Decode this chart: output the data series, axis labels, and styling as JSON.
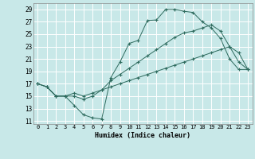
{
  "xlabel": "Humidex (Indice chaleur)",
  "background_color": "#c8e8e8",
  "grid_color": "#ffffff",
  "line_color": "#2e6b5e",
  "xlim": [
    -0.5,
    23.5
  ],
  "ylim": [
    10.5,
    30.0
  ],
  "yticks": [
    11,
    13,
    15,
    17,
    19,
    21,
    23,
    25,
    27,
    29
  ],
  "xticks": [
    0,
    1,
    2,
    3,
    4,
    5,
    6,
    7,
    8,
    9,
    10,
    11,
    12,
    13,
    14,
    15,
    16,
    17,
    18,
    19,
    20,
    21,
    22,
    23
  ],
  "line1_x": [
    0,
    1,
    2,
    3,
    4,
    5,
    6,
    7,
    8,
    9,
    10,
    11,
    12,
    13,
    14,
    15,
    16,
    17,
    18,
    19,
    20,
    21,
    22,
    23
  ],
  "line1_y": [
    17.0,
    16.5,
    15.0,
    15.0,
    13.5,
    12.0,
    11.5,
    11.3,
    18.0,
    20.5,
    23.5,
    24.0,
    27.2,
    27.3,
    29.0,
    29.0,
    28.7,
    28.5,
    27.0,
    26.0,
    24.3,
    21.0,
    19.3,
    19.3
  ],
  "line2_x": [
    0,
    1,
    2,
    3,
    4,
    5,
    6,
    7,
    8,
    9,
    10,
    11,
    12,
    13,
    14,
    15,
    16,
    17,
    18,
    19,
    20,
    21,
    22,
    23
  ],
  "line2_y": [
    17.0,
    16.5,
    15.0,
    15.0,
    15.5,
    15.0,
    15.5,
    16.0,
    17.5,
    18.5,
    19.5,
    20.5,
    21.5,
    22.5,
    23.5,
    24.5,
    25.2,
    25.5,
    26.0,
    26.5,
    25.5,
    23.0,
    20.5,
    19.3
  ],
  "line3_x": [
    0,
    1,
    2,
    3,
    4,
    5,
    6,
    7,
    8,
    9,
    10,
    11,
    12,
    13,
    14,
    15,
    16,
    17,
    18,
    19,
    20,
    21,
    22,
    23
  ],
  "line3_y": [
    17.0,
    16.5,
    15.0,
    15.0,
    15.0,
    14.5,
    15.0,
    16.0,
    16.5,
    17.0,
    17.5,
    18.0,
    18.5,
    19.0,
    19.5,
    20.0,
    20.5,
    21.0,
    21.5,
    22.0,
    22.5,
    23.0,
    22.0,
    19.3
  ]
}
